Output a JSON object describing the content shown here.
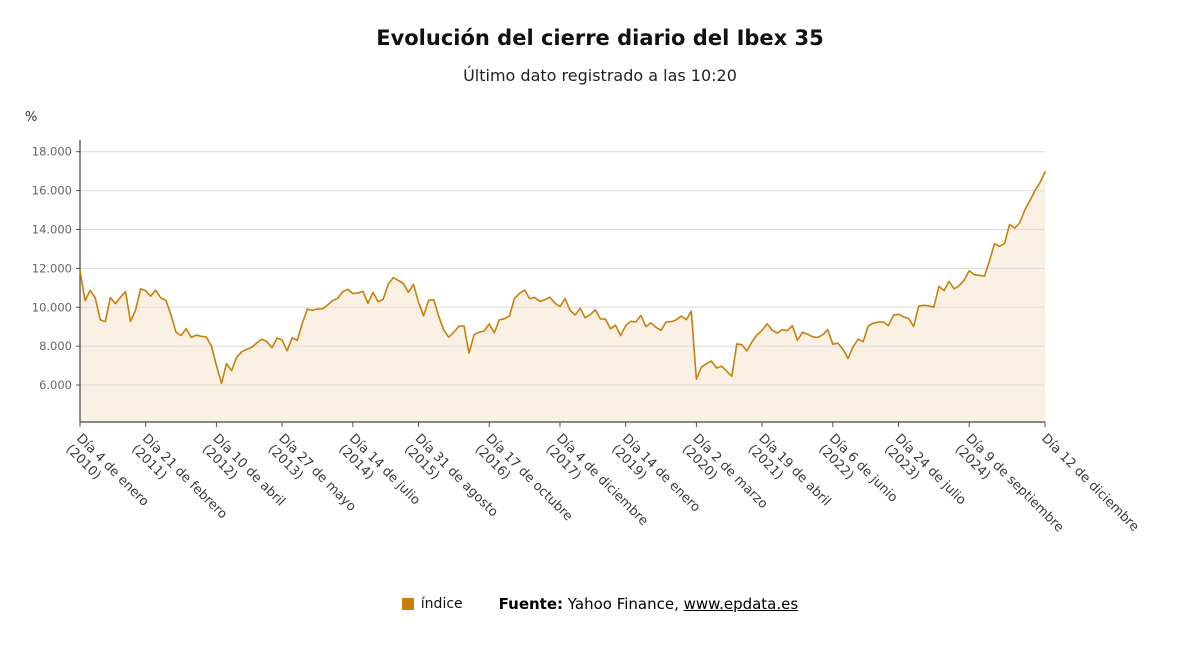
{
  "header": {
    "title": "Evolución del cierre diario del Ibex 35",
    "subtitle": "Último dato registrado a las 10:20"
  },
  "y_axis": {
    "unit_label": "%"
  },
  "legend": {
    "series_label": "índice",
    "series_color": "#C8800A"
  },
  "source": {
    "prefix": "Fuente:",
    "text": " Yahoo Finance, ",
    "link": "www.epdata.es"
  },
  "chart_data": {
    "type": "line",
    "title": "Evolución del cierre diario del Ibex 35",
    "subtitle": "Último dato registrado a las 10:20",
    "series_name": "índice",
    "unit": "%",
    "x_start": "2010-01",
    "x_end": "2025-12",
    "x_granularity": "monthly approximation of daily closes",
    "ylim": [
      4100,
      18600
    ],
    "grid": true,
    "legend_position": "bottom",
    "line_color": "#C8800A",
    "area_fill": "#FAF0E4",
    "y_ticks": [
      {
        "value": 18000,
        "label": "18.000"
      },
      {
        "value": 16000,
        "label": "16.000"
      },
      {
        "value": 14000,
        "label": "14.000"
      },
      {
        "value": 12000,
        "label": "12.000"
      },
      {
        "value": 10000,
        "label": "10.000"
      },
      {
        "value": 8000,
        "label": "8.000"
      },
      {
        "value": 6000,
        "label": "6.000"
      }
    ],
    "x_ticks": [
      {
        "index": 0,
        "line1": "Día 4 de enero",
        "line2": "(2010)"
      },
      {
        "index": 13,
        "line1": "Día 21 de febrero",
        "line2": "(2011)"
      },
      {
        "index": 27,
        "line1": "Día 10 de abril",
        "line2": "(2012)"
      },
      {
        "index": 40,
        "line1": "Día 27 de mayo",
        "line2": "(2013)"
      },
      {
        "index": 54,
        "line1": "Día 14 de julio",
        "line2": "(2014)"
      },
      {
        "index": 67,
        "line1": "Día 31 de agosto",
        "line2": "(2015)"
      },
      {
        "index": 81,
        "line1": "Día 17 de octubre",
        "line2": "(2016)"
      },
      {
        "index": 95,
        "line1": "Día 4 de diciembre",
        "line2": "(2017)"
      },
      {
        "index": 108,
        "line1": "Día 14 de enero",
        "line2": "(2019)"
      },
      {
        "index": 122,
        "line1": "Día 2 de marzo",
        "line2": "(2020)"
      },
      {
        "index": 135,
        "line1": "Día 19 de abril",
        "line2": "(2021)"
      },
      {
        "index": 149,
        "line1": "Día 6 de junio",
        "line2": "(2022)"
      },
      {
        "index": 162,
        "line1": "Día 24 de julio",
        "line2": "(2023)"
      },
      {
        "index": 176,
        "line1": "Día 9 de septiembre",
        "line2": "(2024)"
      },
      {
        "index": 191,
        "line1": "Día 12 de diciembre",
        "line2": ""
      }
    ],
    "series": [
      {
        "name": "índice",
        "values": [
          11900,
          10333,
          10871,
          10492,
          9359,
          9264,
          10500,
          10187,
          10514,
          10812,
          9267,
          9859,
          10947,
          10850,
          10576,
          10879,
          10476,
          10359,
          9630,
          8718,
          8546,
          8895,
          8449,
          8566,
          8509,
          8465,
          8008,
          7011,
          6090,
          7102,
          6738,
          7420,
          7708,
          7842,
          7934,
          8167,
          8362,
          8230,
          7920,
          8419,
          8320,
          7763,
          8433,
          8290,
          9186,
          9907,
          9837,
          9916,
          9920,
          10114,
          10340,
          10459,
          10798,
          10923,
          10707,
          10728,
          10825,
          10201,
          10770,
          10279,
          10403,
          11178,
          11521,
          11385,
          11217,
          10769,
          11180,
          10259,
          9559,
          10360,
          10386,
          9544,
          8815,
          8461,
          8723,
          9025,
          9034,
          7645,
          8587,
          8716,
          8779,
          9143,
          8688,
          9352,
          9412,
          9555,
          10462,
          10716,
          10880,
          10445,
          10502,
          10300,
          10381,
          10523,
          10211,
          10044,
          10452,
          9840,
          9600,
          9946,
          9465,
          9623,
          9871,
          9399,
          9389,
          8893,
          9077,
          8540,
          9056,
          9278,
          9240,
          9588,
          9004,
          9199,
          8971,
          8813,
          9244,
          9257,
          9352,
          9549,
          9367,
          9800,
          6300,
          6922,
          7096,
          7231,
          6877,
          6970,
          6716,
          6452,
          8117,
          8074,
          7758,
          8225,
          8580,
          8815,
          9149,
          8821,
          8676,
          8846,
          8796,
          9058,
          8305,
          8714,
          8612,
          8479,
          8445,
          8584,
          8851,
          8099,
          8156,
          7846,
          7366,
          7958,
          8363,
          8229,
          9034,
          9180,
          9232,
          9241,
          9050,
          9593,
          9641,
          9506,
          9428,
          9017,
          10058,
          10102,
          10077,
          10001,
          11074,
          10854,
          11327,
          10951,
          11101,
          11401,
          11877,
          11672,
          11641,
          11595,
          12369,
          13268,
          13135,
          13288,
          14261,
          14069,
          14331,
          15004,
          15475,
          16000,
          16400,
          16958
        ]
      }
    ]
  }
}
